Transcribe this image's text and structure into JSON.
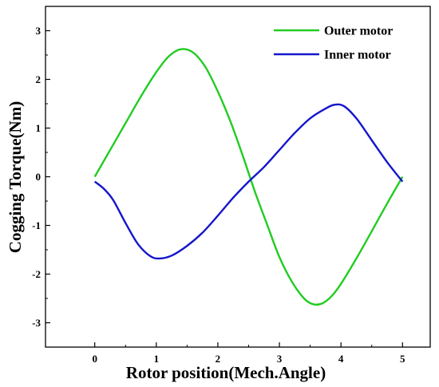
{
  "chart_data": {
    "type": "line",
    "title": "",
    "xlabel": "Rotor position(Mech.Angle)",
    "ylabel": "Cogging Torque(Nm)",
    "xlim": [
      -0.8,
      5.45
    ],
    "ylim": [
      -3.5,
      3.5
    ],
    "xticks": [
      0,
      1,
      2,
      3,
      4,
      5
    ],
    "yticks": [
      -3,
      -2,
      -1,
      0,
      1,
      2,
      3
    ],
    "grid": false,
    "legend": "top-right",
    "series": [
      {
        "name": "Outer motor",
        "color": "#22cc22",
        "x": [
          0,
          0.25,
          0.5,
          0.75,
          1.0,
          1.2,
          1.4,
          1.6,
          1.8,
          2.0,
          2.2,
          2.4,
          2.6,
          2.8,
          3.0,
          3.2,
          3.4,
          3.55,
          3.7,
          3.85,
          4.0,
          4.25,
          4.5,
          4.75,
          5.0
        ],
        "values": [
          0,
          0.55,
          1.1,
          1.65,
          2.15,
          2.47,
          2.62,
          2.55,
          2.25,
          1.75,
          1.15,
          0.45,
          -0.3,
          -0.98,
          -1.65,
          -2.15,
          -2.5,
          -2.62,
          -2.6,
          -2.45,
          -2.2,
          -1.68,
          -1.12,
          -0.55,
          0
        ]
      },
      {
        "name": "Inner motor",
        "color": "#1515cc",
        "x": [
          0,
          0.15,
          0.3,
          0.5,
          0.7,
          0.9,
          1.05,
          1.25,
          1.5,
          1.75,
          2.0,
          2.25,
          2.5,
          2.75,
          3.0,
          3.25,
          3.5,
          3.75,
          3.9,
          4.05,
          4.25,
          4.5,
          4.75,
          5.0
        ],
        "values": [
          -0.1,
          -0.25,
          -0.48,
          -0.95,
          -1.38,
          -1.63,
          -1.68,
          -1.62,
          -1.42,
          -1.15,
          -0.8,
          -0.43,
          -0.1,
          0.2,
          0.55,
          0.9,
          1.2,
          1.4,
          1.48,
          1.45,
          1.2,
          0.75,
          0.3,
          -0.1
        ]
      }
    ]
  }
}
